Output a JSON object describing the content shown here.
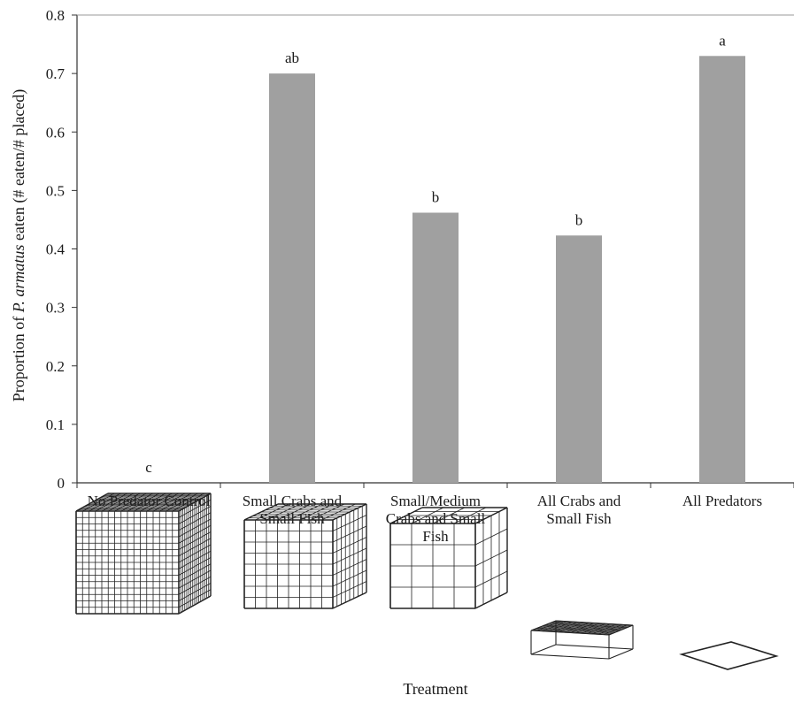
{
  "chart_data": {
    "type": "bar",
    "categories": [
      [
        "No Predator Control"
      ],
      [
        "Small Crabs and",
        "Small Fish"
      ],
      [
        "Small/Medium",
        "Crabs and Small",
        "Fish"
      ],
      [
        "All Crabs and",
        "Small Fish"
      ],
      [
        "All Predators"
      ]
    ],
    "values": [
      0,
      0.7,
      0.462,
      0.423,
      0.73
    ],
    "significance_letters": [
      "c",
      "ab",
      "b",
      "b",
      "a"
    ],
    "ylabel_parts": [
      "Proportion of ",
      "P. armatus",
      " eaten (# eaten/# placed)"
    ],
    "xlabel": "Treatment",
    "ylim": [
      0,
      0.8
    ],
    "yticks": [
      "0",
      "0.1",
      "0.2",
      "0.3",
      "0.4",
      "0.5",
      "0.6",
      "0.7",
      "0.8"
    ],
    "grid": false,
    "bar_color": "#a0a0a0",
    "cage_icons": [
      "fine-mesh-cage-icon",
      "medium-mesh-cage-icon",
      "coarse-mesh-cage-icon",
      "roof-only-cage-icon",
      "open-plot-marker-icon"
    ]
  }
}
